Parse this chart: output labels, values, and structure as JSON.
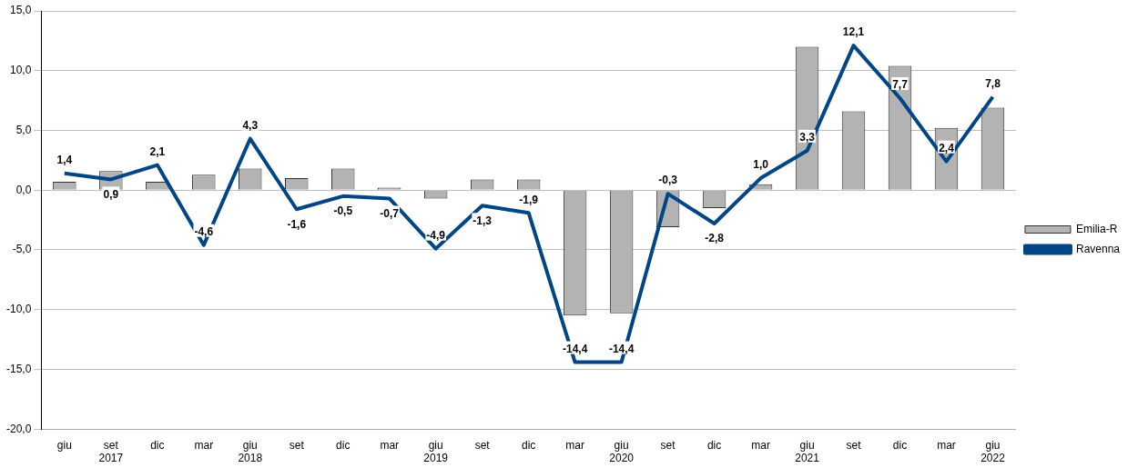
{
  "chart_data": {
    "type": "bar",
    "categories": [
      "giu",
      "set\n2017",
      "dic",
      "mar",
      "giu\n2018",
      "set",
      "dic",
      "mar",
      "giu\n2019",
      "set",
      "dic",
      "mar",
      "giu\n2020",
      "set",
      "dic",
      "mar",
      "giu\n2021",
      "set",
      "dic",
      "mar",
      "giu\n2022"
    ],
    "series": [
      {
        "name": "Emilia-R",
        "color": "#b3b3b3",
        "values": [
          0.7,
          1.6,
          0.7,
          1.3,
          1.8,
          1.0,
          1.8,
          0.2,
          -0.7,
          0.9,
          0.9,
          -10.5,
          -10.3,
          -3.1,
          -1.5,
          0.5,
          12.0,
          6.6,
          10.4,
          5.2,
          6.9
        ]
      },
      {
        "name": "Ravenna",
        "type": "line",
        "color": "#004586",
        "values": [
          1.4,
          0.9,
          2.1,
          -4.6,
          4.3,
          -1.6,
          -0.5,
          -0.7,
          -4.9,
          -1.3,
          -1.9,
          -14.4,
          -14.4,
          -0.3,
          -2.8,
          1.0,
          3.3,
          12.1,
          7.7,
          2.4,
          7.8
        ],
        "value_labels": [
          "1,4",
          "0,9",
          "2,1",
          "-4,6",
          "4,3",
          "-1,6",
          "-0,5",
          "-0,7",
          "-4,9",
          "-1,3",
          "-1,9",
          "-14,4",
          "-14,4",
          "-0,3",
          "-2,8",
          "1,0",
          "3,3",
          "12,1",
          "7,7",
          "2,4",
          "7,8"
        ]
      }
    ],
    "ylim": [
      -20,
      15
    ],
    "yticks": [
      {
        "value": -20,
        "label": "-20,0"
      },
      {
        "value": -15,
        "label": "-15,0"
      },
      {
        "value": -10,
        "label": "-10,0"
      },
      {
        "value": -5,
        "label": "-5,0"
      },
      {
        "value": 0,
        "label": "0,0"
      },
      {
        "value": 5,
        "label": "5,0"
      },
      {
        "value": 10,
        "label": "10,0"
      },
      {
        "value": 15,
        "label": "15,0"
      }
    ],
    "grid": "y",
    "legend": "right"
  }
}
